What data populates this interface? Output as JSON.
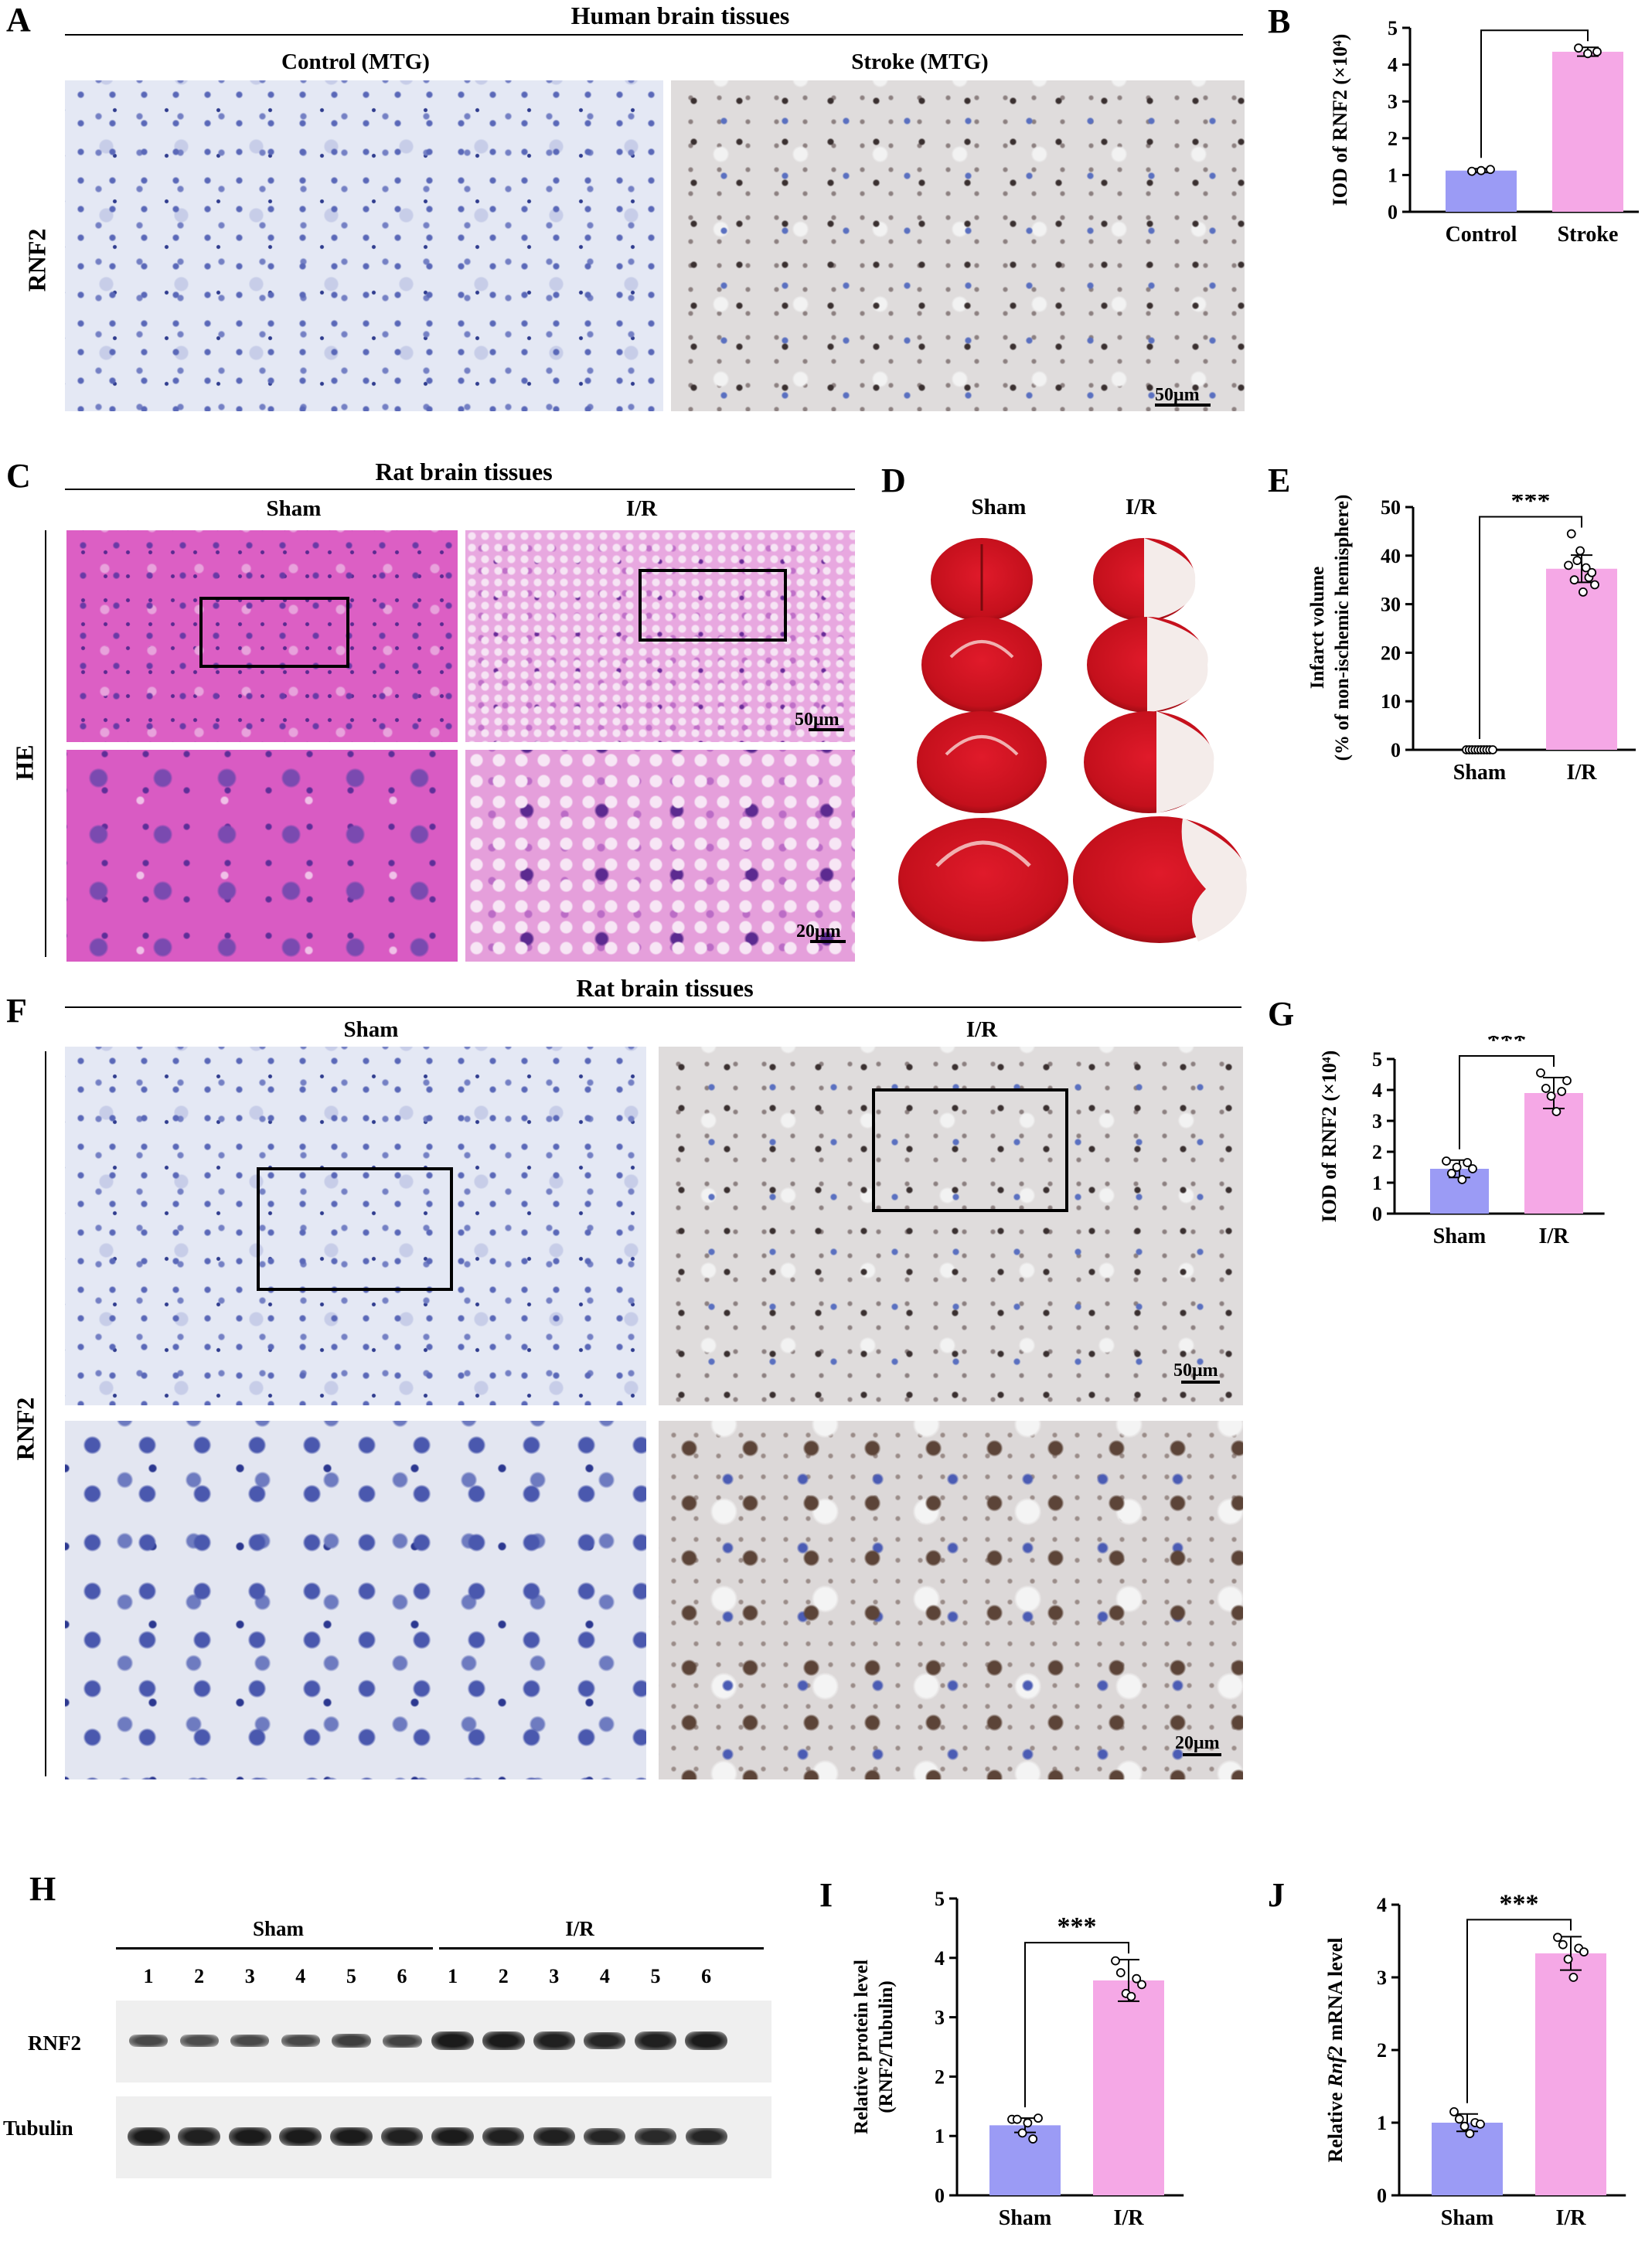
{
  "panels": {
    "A": {
      "label": "A",
      "title": "Human brain tissues",
      "col1": "Control (MTG)",
      "col2": "Stroke (MTG)",
      "row": "RNF2",
      "scale": "50μm"
    },
    "B": {
      "label": "B"
    },
    "C": {
      "label": "C",
      "title": "Rat brain tissues",
      "col1": "Sham",
      "col2": "I/R",
      "row": "HE",
      "scale_top": "50μm",
      "scale_bottom": "20μm"
    },
    "D": {
      "label": "D",
      "col1": "Sham",
      "col2": "I/R"
    },
    "E": {
      "label": "E"
    },
    "F": {
      "label": "F",
      "title": "Rat brain tissues",
      "col1": "Sham",
      "col2": "I/R",
      "row": "RNF2",
      "scale_top": "50μm",
      "scale_bottom": "20μm"
    },
    "G": {
      "label": "G"
    },
    "H": {
      "label": "H",
      "group1": "Sham",
      "group2": "I/R",
      "lanes": [
        "1",
        "2",
        "3",
        "4",
        "5",
        "6"
      ],
      "row1": "RNF2",
      "row2": "Tubulin"
    },
    "I": {
      "label": "I"
    },
    "J": {
      "label": "J"
    }
  },
  "colors": {
    "control": "#9b9bf5",
    "treated": "#f5a8e6"
  },
  "western": {
    "rnf2_intensity": [
      0.45,
      0.4,
      0.45,
      0.45,
      0.55,
      0.5,
      0.9,
      0.9,
      0.85,
      0.8,
      0.85,
      0.9
    ],
    "tubulin_intensity": [
      0.9,
      0.85,
      0.9,
      0.9,
      0.9,
      0.85,
      0.9,
      0.85,
      0.85,
      0.8,
      0.75,
      0.8
    ]
  },
  "chart_data": [
    {
      "id": "B",
      "type": "bar",
      "categories": [
        "Control",
        "Stroke"
      ],
      "values": [
        1.12,
        4.35
      ],
      "errors": [
        0.05,
        0.12
      ],
      "points": [
        [
          1.1,
          1.12,
          1.15
        ],
        [
          4.45,
          4.3,
          4.35
        ]
      ],
      "ylabel": "IOD of RNF2 (×10⁴)",
      "ylim": [
        0,
        5
      ],
      "yticks": [
        "0",
        "1",
        "2",
        "3",
        "4",
        "5"
      ],
      "significance": "***"
    },
    {
      "id": "E",
      "type": "bar",
      "categories": [
        "Sham",
        "I/R"
      ],
      "values": [
        0,
        37.3
      ],
      "errors": [
        0,
        2.8
      ],
      "points": [
        [
          0,
          0,
          0,
          0,
          0,
          0,
          0,
          0,
          0,
          0
        ],
        [
          38,
          44.5,
          35,
          39,
          41,
          32.5,
          37.5,
          35.5,
          36.5,
          34
        ]
      ],
      "ylabel": "Infarct volume",
      "ylabel2": "(% of non-ischemic hemisphere)",
      "ylim": [
        0,
        50
      ],
      "yticks": [
        "0",
        "10",
        "20",
        "30",
        "40",
        "50"
      ],
      "significance": "***"
    },
    {
      "id": "G",
      "type": "bar",
      "categories": [
        "Sham",
        "I/R"
      ],
      "values": [
        1.45,
        3.9
      ],
      "errors": [
        0.28,
        0.5
      ],
      "points": [
        [
          1.7,
          1.3,
          1.5,
          1.1,
          1.65,
          1.45
        ],
        [
          4.55,
          4.05,
          3.8,
          3.3,
          3.95,
          4.3
        ]
      ],
      "ylabel": "IOD of RNF2 (×10⁴)",
      "ylim": [
        0,
        5
      ],
      "yticks": [
        "0",
        "1",
        "2",
        "3",
        "4",
        "5"
      ],
      "significance": "***"
    },
    {
      "id": "I",
      "type": "bar",
      "categories": [
        "Sham",
        "I/R"
      ],
      "values": [
        1.18,
        3.62
      ],
      "errors": [
        0.12,
        0.35
      ],
      "points": [
        [
          1.28,
          1.28,
          1.05,
          1.22,
          0.95,
          1.3
        ],
        [
          3.95,
          3.75,
          3.4,
          3.35,
          3.65,
          3.55
        ]
      ],
      "ylabel": "Relative protein level",
      "ylabel2": "(RNF2/Tubulin)",
      "ylim": [
        0,
        5
      ],
      "yticks": [
        "0",
        "1",
        "2",
        "3",
        "4",
        "5"
      ],
      "significance": "***"
    },
    {
      "id": "J",
      "type": "bar",
      "categories": [
        "Sham",
        "I/R"
      ],
      "values": [
        1.0,
        3.33
      ],
      "errors": [
        0.12,
        0.23
      ],
      "points": [
        [
          1.15,
          1.05,
          0.95,
          0.85,
          1.0,
          0.98
        ],
        [
          3.55,
          3.45,
          3.25,
          3.0,
          3.4,
          3.35
        ]
      ],
      "ylabel_pre": "Relative ",
      "ylabel_it": "Rnf2",
      "ylabel_post": " mRNA level",
      "ylim": [
        0,
        4
      ],
      "yticks": [
        "0",
        "1",
        "2",
        "3",
        "4"
      ],
      "significance": "***"
    }
  ]
}
